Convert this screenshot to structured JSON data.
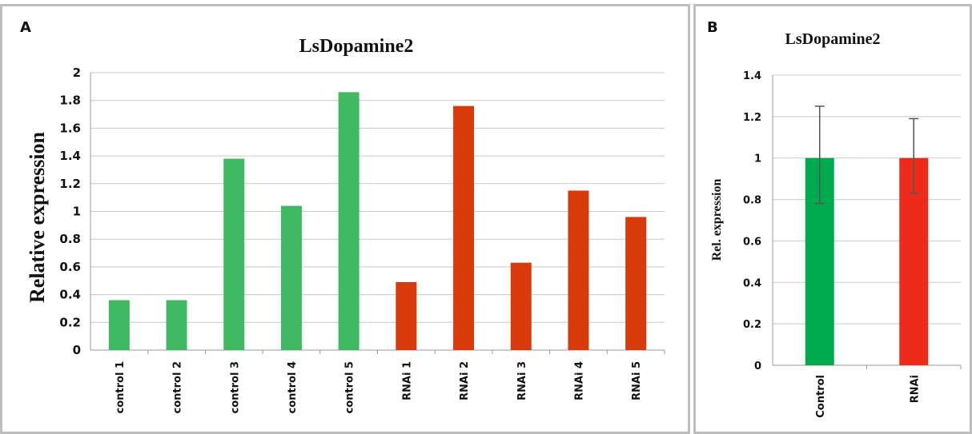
{
  "chart_data": [
    {
      "panel": "A",
      "type": "bar",
      "title": "LsDopamine2",
      "ylabel": "Relative expression",
      "xlabel": "",
      "ylim": [
        0,
        2
      ],
      "yticks": [
        "0",
        "0.2",
        "0.4",
        "0.6",
        "0.8",
        "1",
        "1.2",
        "1.4",
        "1.6",
        "1.8",
        "2"
      ],
      "grid": true,
      "categories": [
        "control 1",
        "control 2",
        "control 3",
        "control 4",
        "control 5",
        "RNAi 1",
        "RNAi 2",
        "RNAi 3",
        "RNAi 4",
        "RNAi 5"
      ],
      "values": [
        0.36,
        0.36,
        1.38,
        1.04,
        1.86,
        0.49,
        1.76,
        0.63,
        1.15,
        0.96
      ],
      "bar_colors": [
        "#3fba63",
        "#3fba63",
        "#3fba63",
        "#3fba63",
        "#3fba63",
        "#d83a0c",
        "#d83a0c",
        "#d83a0c",
        "#d83a0c",
        "#d83a0c"
      ]
    },
    {
      "panel": "B",
      "type": "bar",
      "title": "LsDopamine2",
      "ylabel": "Rel. expression",
      "xlabel": "",
      "ylim": [
        0,
        1.4
      ],
      "yticks": [
        "0",
        "0.2",
        "0.4",
        "0.6",
        "0.8",
        "1",
        "1.2",
        "1.4"
      ],
      "grid": true,
      "categories": [
        "Control",
        "RNAi"
      ],
      "values": [
        1.0,
        1.0
      ],
      "error_low": [
        0.78,
        0.83
      ],
      "error_high": [
        1.25,
        1.19
      ],
      "bar_colors": [
        "#00aa4f",
        "#ee2b1a"
      ]
    }
  ]
}
